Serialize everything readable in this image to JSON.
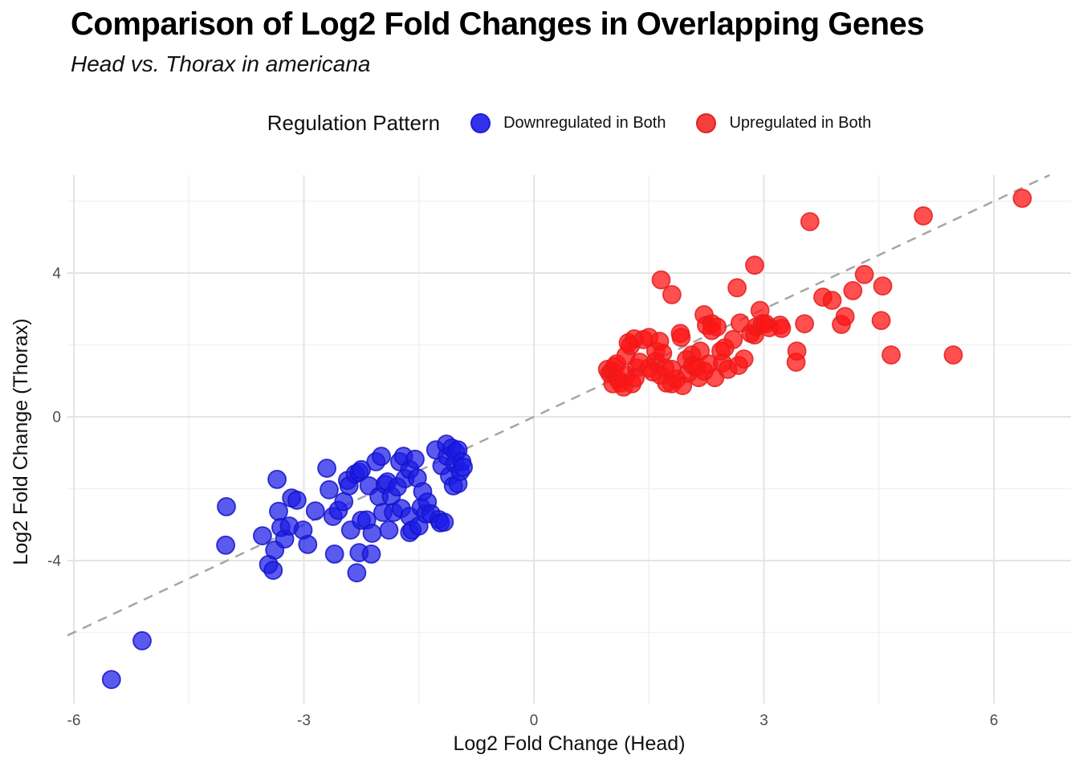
{
  "title": "Comparison of Log2 Fold Changes in Overlapping Genes",
  "subtitle": "Head vs. Thorax in americana",
  "legend": {
    "title": "Regulation Pattern",
    "entries": [
      {
        "label": "Downregulated in Both",
        "color": "#3232ee",
        "stroke": "#1f1fd4"
      },
      {
        "label": "Upregulated in Both",
        "color": "#f73e3e",
        "stroke": "#e02525"
      }
    ]
  },
  "chart_data": {
    "type": "scatter",
    "title": "Comparison of Log2 Fold Changes in Overlapping Genes",
    "subtitle": "Head vs. Thorax in americana",
    "xlabel": "Log2 Fold Change (Head)",
    "ylabel": "Log2 Fold Change (Thorax)",
    "xlim": [
      -6.1,
      7.0
    ],
    "ylim": [
      -8.0,
      6.6
    ],
    "x_ticks": [
      -6,
      -3,
      0,
      3,
      6
    ],
    "y_ticks": [
      -4,
      0,
      4
    ],
    "x_minor_ticks": [
      -4.5,
      -1.5,
      1.5,
      4.5
    ],
    "y_minor_ticks": [
      -6,
      -2,
      2,
      6
    ],
    "grid": true,
    "legend_position": "top",
    "reference_line": {
      "type": "identity",
      "slope": 1,
      "intercept": 0,
      "style": "dashed",
      "color": "#a6a6a6"
    },
    "colors": {
      "major_grid": "#e4e4e4",
      "minor_grid": "#f2f2f2",
      "tick_text": "#4d4d4d"
    },
    "series": [
      {
        "name": "Downregulated in Both",
        "fill": "#1b1be8",
        "fill_opacity": 0.72,
        "stroke": "#1414c8",
        "points": [
          [
            -5.51,
            -7.31
          ],
          [
            -5.11,
            -6.23
          ],
          [
            -4.01,
            -2.5
          ],
          [
            -4.02,
            -3.57
          ],
          [
            -3.54,
            -3.31
          ],
          [
            -3.46,
            -4.11
          ],
          [
            -3.4,
            -4.27
          ],
          [
            -3.35,
            -1.74
          ],
          [
            -3.33,
            -2.63
          ],
          [
            -3.3,
            -3.08
          ],
          [
            -3.38,
            -3.71
          ],
          [
            -3.25,
            -3.4
          ],
          [
            -3.19,
            -3.04
          ],
          [
            -3.16,
            -2.26
          ],
          [
            -3.09,
            -2.32
          ],
          [
            -3.01,
            -3.15
          ],
          [
            -2.95,
            -3.55
          ],
          [
            -2.85,
            -2.62
          ],
          [
            -2.7,
            -1.43
          ],
          [
            -2.67,
            -2.03
          ],
          [
            -2.62,
            -2.77
          ],
          [
            -2.6,
            -3.82
          ],
          [
            -2.55,
            -2.6
          ],
          [
            -2.48,
            -2.36
          ],
          [
            -2.43,
            -1.77
          ],
          [
            -2.41,
            -1.92
          ],
          [
            -2.39,
            -3.15
          ],
          [
            -2.33,
            -1.59
          ],
          [
            -2.31,
            -4.34
          ],
          [
            -2.28,
            -1.54
          ],
          [
            -2.28,
            -3.78
          ],
          [
            -2.25,
            -1.47
          ],
          [
            -2.25,
            -2.88
          ],
          [
            -2.18,
            -2.87
          ],
          [
            -2.15,
            -1.92
          ],
          [
            -2.12,
            -3.82
          ],
          [
            -2.11,
            -3.24
          ],
          [
            -2.06,
            -1.25
          ],
          [
            -2.02,
            -2.22
          ],
          [
            -1.99,
            -1.1
          ],
          [
            -1.97,
            -2.66
          ],
          [
            -1.94,
            -1.88
          ],
          [
            -1.91,
            -1.81
          ],
          [
            -1.89,
            -3.15
          ],
          [
            -1.86,
            -2.21
          ],
          [
            -1.83,
            -2.66
          ],
          [
            -1.78,
            -1.95
          ],
          [
            -1.75,
            -1.25
          ],
          [
            -1.73,
            -2.55
          ],
          [
            -1.7,
            -1.1
          ],
          [
            -1.68,
            -1.72
          ],
          [
            -1.62,
            -1.47
          ],
          [
            -1.62,
            -2.77
          ],
          [
            -1.62,
            -3.22
          ],
          [
            -1.59,
            -3.15
          ],
          [
            -1.55,
            -1.18
          ],
          [
            -1.52,
            -1.7
          ],
          [
            -1.5,
            -3.04
          ],
          [
            -1.47,
            -2.52
          ],
          [
            -1.45,
            -2.08
          ],
          [
            -1.41,
            -2.7
          ],
          [
            -1.39,
            -2.37
          ],
          [
            -1.34,
            -2.7
          ],
          [
            -1.28,
            -0.92
          ],
          [
            -1.24,
            -2.86
          ],
          [
            -1.22,
            -2.95
          ],
          [
            -1.2,
            -1.36
          ],
          [
            -1.17,
            -2.93
          ],
          [
            -1.14,
            -0.76
          ],
          [
            -1.13,
            -1.1
          ],
          [
            -1.1,
            -1.65
          ],
          [
            -1.07,
            -0.87
          ],
          [
            -1.05,
            -1.92
          ],
          [
            -1.03,
            -1.3
          ],
          [
            -1.02,
            -0.98
          ],
          [
            -0.99,
            -1.86
          ],
          [
            -0.99,
            -0.92
          ],
          [
            -0.96,
            -1.52
          ],
          [
            -0.94,
            -1.25
          ],
          [
            -0.92,
            -1.4
          ]
        ]
      },
      {
        "name": "Upregulated in Both",
        "fill": "#ff1414",
        "fill_opacity": 0.75,
        "stroke": "#e31e1e",
        "points": [
          [
            0.96,
            1.32
          ],
          [
            0.99,
            1.21
          ],
          [
            1.02,
            1.27
          ],
          [
            1.03,
            0.92
          ],
          [
            1.05,
            1.39
          ],
          [
            1.08,
            1.47
          ],
          [
            1.1,
            1.03
          ],
          [
            1.13,
            0.94
          ],
          [
            1.17,
            0.83
          ],
          [
            1.2,
            1.16
          ],
          [
            1.2,
            1.7
          ],
          [
            1.23,
            2.06
          ],
          [
            1.26,
            1.98
          ],
          [
            1.28,
            0.92
          ],
          [
            1.31,
            2.17
          ],
          [
            1.32,
            1.08
          ],
          [
            1.34,
            1.36
          ],
          [
            1.38,
            1.52
          ],
          [
            1.43,
            2.15
          ],
          [
            1.5,
            2.21
          ],
          [
            1.5,
            1.36
          ],
          [
            1.55,
            1.25
          ],
          [
            1.59,
            1.54
          ],
          [
            1.59,
            1.83
          ],
          [
            1.64,
            2.1
          ],
          [
            1.65,
            1.16
          ],
          [
            1.66,
            3.81
          ],
          [
            1.68,
            1.77
          ],
          [
            1.71,
            1.36
          ],
          [
            1.73,
            0.94
          ],
          [
            1.8,
            3.4
          ],
          [
            1.8,
            1.32
          ],
          [
            1.8,
            0.92
          ],
          [
            1.86,
            1.05
          ],
          [
            1.91,
            2.32
          ],
          [
            1.92,
            2.21
          ],
          [
            1.94,
            0.87
          ],
          [
            1.99,
            1.59
          ],
          [
            2.01,
            1.21
          ],
          [
            2.06,
            1.72
          ],
          [
            2.07,
            1.43
          ],
          [
            2.12,
            1.39
          ],
          [
            2.15,
            1.09
          ],
          [
            2.17,
            1.83
          ],
          [
            2.22,
            1.27
          ],
          [
            2.22,
            2.84
          ],
          [
            2.25,
            2.55
          ],
          [
            2.28,
            1.47
          ],
          [
            2.32,
            2.59
          ],
          [
            2.32,
            2.4
          ],
          [
            2.36,
            1.09
          ],
          [
            2.39,
            2.5
          ],
          [
            2.44,
            1.83
          ],
          [
            2.46,
            1.5
          ],
          [
            2.49,
            1.92
          ],
          [
            2.53,
            1.32
          ],
          [
            2.6,
            2.15
          ],
          [
            2.65,
            3.59
          ],
          [
            2.67,
            1.43
          ],
          [
            2.69,
            2.61
          ],
          [
            2.74,
            1.61
          ],
          [
            2.83,
            2.32
          ],
          [
            2.88,
            4.22
          ],
          [
            2.88,
            2.28
          ],
          [
            2.9,
            2.5
          ],
          [
            2.95,
            2.96
          ],
          [
            2.98,
            2.59
          ],
          [
            3.02,
            2.59
          ],
          [
            3.07,
            2.48
          ],
          [
            3.21,
            2.55
          ],
          [
            3.23,
            2.46
          ],
          [
            3.42,
            1.52
          ],
          [
            3.43,
            1.83
          ],
          [
            3.53,
            2.59
          ],
          [
            3.6,
            5.43
          ],
          [
            3.77,
            3.33
          ],
          [
            3.89,
            3.24
          ],
          [
            4.01,
            2.57
          ],
          [
            4.06,
            2.79
          ],
          [
            4.16,
            3.51
          ],
          [
            4.31,
            3.96
          ],
          [
            4.53,
            2.68
          ],
          [
            4.55,
            3.64
          ],
          [
            4.66,
            1.72
          ],
          [
            5.08,
            5.59
          ],
          [
            5.47,
            1.72
          ],
          [
            6.37,
            6.08
          ]
        ]
      }
    ]
  }
}
